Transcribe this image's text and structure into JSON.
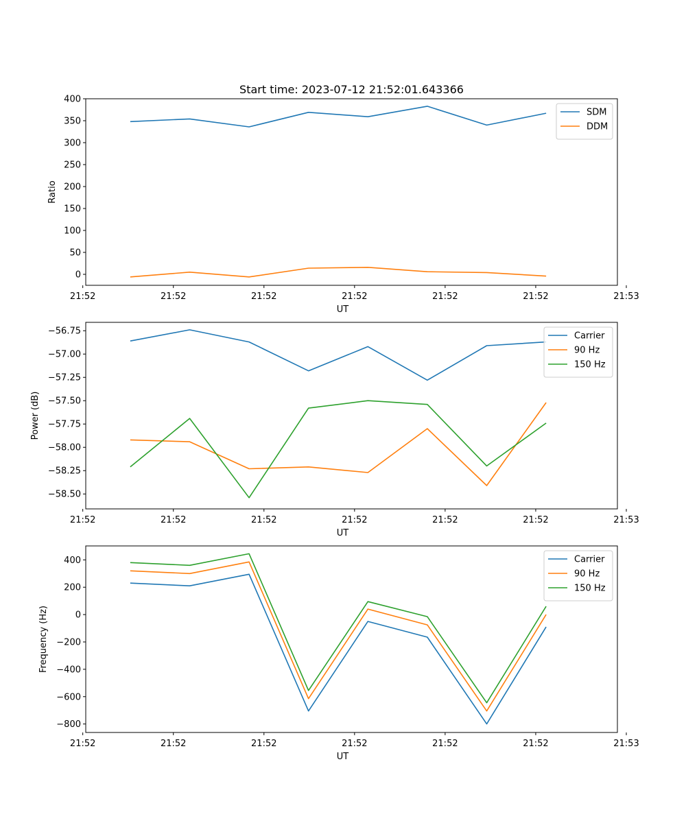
{
  "figure_title": "Start time: 2023-07-12 21:52:01.643366",
  "chart_data": [
    {
      "type": "line",
      "title": "Start time: 2023-07-12 21:52:01.643366",
      "xlabel": "UT",
      "ylabel": "Ratio",
      "x": [
        1,
        2,
        3,
        4,
        5,
        6,
        7,
        8
      ],
      "xlim": [
        0.25,
        9.2
      ],
      "x_ticks": [
        0.2,
        1.725,
        3.25,
        4.775,
        6.3,
        7.825,
        9.35
      ],
      "x_tick_labels": [
        "21:52",
        "21:52",
        "21:52",
        "21:52",
        "21:52",
        "21:52",
        "21:53"
      ],
      "ylim": [
        -25,
        400
      ],
      "y_ticks": [
        0,
        50,
        100,
        150,
        200,
        250,
        300,
        350,
        400
      ],
      "y_tick_labels": [
        "0",
        "50",
        "100",
        "150",
        "200",
        "250",
        "300",
        "350",
        "400"
      ],
      "legend_position": "top-right",
      "series": [
        {
          "name": "SDM",
          "color": "#1f77b4",
          "values": [
            348,
            354,
            336,
            369,
            359,
            383,
            340,
            367
          ]
        },
        {
          "name": "DDM",
          "color": "#ff7f0e",
          "values": [
            -6,
            5,
            -6,
            14,
            16,
            6,
            4,
            -4
          ]
        }
      ]
    },
    {
      "type": "line",
      "title": "",
      "xlabel": "UT",
      "ylabel": "Power (dB)",
      "x": [
        1,
        2,
        3,
        4,
        5,
        6,
        7,
        8
      ],
      "xlim": [
        0.25,
        9.2
      ],
      "x_ticks": [
        0.2,
        1.725,
        3.25,
        4.775,
        6.3,
        7.825,
        9.35
      ],
      "x_tick_labels": [
        "21:52",
        "21:52",
        "21:52",
        "21:52",
        "21:52",
        "21:52",
        "21:53"
      ],
      "ylim": [
        -58.66,
        -56.66
      ],
      "y_ticks": [
        -56.75,
        -57.0,
        -57.25,
        -57.5,
        -57.75,
        -58.0,
        -58.25,
        -58.5
      ],
      "y_tick_labels": [
        "−56.75",
        "−57.00",
        "−57.25",
        "−57.50",
        "−57.75",
        "−58.00",
        "−58.25",
        "−58.50"
      ],
      "legend_position": "top-right",
      "series": [
        {
          "name": "Carrier",
          "color": "#1f77b4",
          "values": [
            -56.86,
            -56.74,
            -56.87,
            -57.18,
            -56.92,
            -57.28,
            -56.91,
            -56.87
          ]
        },
        {
          "name": "90 Hz",
          "color": "#ff7f0e",
          "values": [
            -57.92,
            -57.94,
            -58.23,
            -58.21,
            -58.27,
            -57.8,
            -58.41,
            -57.52
          ]
        },
        {
          "name": "150 Hz",
          "color": "#2ca02c",
          "values": [
            -58.21,
            -57.69,
            -58.54,
            -57.58,
            -57.5,
            -57.54,
            -58.2,
            -57.74
          ]
        }
      ]
    },
    {
      "type": "line",
      "title": "",
      "xlabel": "UT",
      "ylabel": "Frequency (Hz)",
      "x": [
        1,
        2,
        3,
        4,
        5,
        6,
        7,
        8
      ],
      "xlim": [
        0.25,
        9.2
      ],
      "x_ticks": [
        0.2,
        1.725,
        3.25,
        4.775,
        6.3,
        7.825,
        9.35
      ],
      "x_tick_labels": [
        "21:52",
        "21:52",
        "21:52",
        "21:52",
        "21:52",
        "21:52",
        "21:53"
      ],
      "ylim": [
        -862,
        502
      ],
      "y_ticks": [
        400,
        200,
        0,
        -200,
        -400,
        -600,
        -800
      ],
      "y_tick_labels": [
        "400",
        "200",
        "0",
        "−200",
        "−400",
        "−600",
        "−800"
      ],
      "legend_position": "top-right",
      "series": [
        {
          "name": "Carrier",
          "color": "#1f77b4",
          "values": [
            230,
            210,
            295,
            -705,
            -50,
            -165,
            -800,
            -90
          ]
        },
        {
          "name": "90 Hz",
          "color": "#ff7f0e",
          "values": [
            320,
            300,
            385,
            -615,
            40,
            -75,
            -705,
            0
          ]
        },
        {
          "name": "150 Hz",
          "color": "#2ca02c",
          "values": [
            380,
            360,
            445,
            -555,
            95,
            -15,
            -645,
            60
          ]
        }
      ]
    }
  ]
}
